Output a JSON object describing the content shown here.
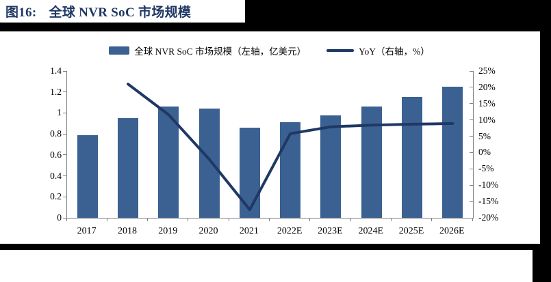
{
  "figure": {
    "label": "图16:",
    "title": "全球 NVR SoC 市场规模"
  },
  "legend": {
    "bar_label": "全球 NVR SoC 市场规模（左轴，亿美元）",
    "line_label": "YoY（右轴，%）"
  },
  "chart_data": {
    "type": "bar",
    "title": "全球 NVR SoC 市场规模",
    "categories": [
      "2017",
      "2018",
      "2019",
      "2020",
      "2021",
      "2022E",
      "2023E",
      "2024E",
      "2025E",
      "2026E"
    ],
    "series": [
      {
        "name": "全球 NVR SoC 市场规模（左轴，亿美元）",
        "type": "bar",
        "axis": "left",
        "values": [
          0.79,
          0.95,
          1.06,
          1.04,
          0.86,
          0.91,
          0.98,
          1.06,
          1.15,
          1.25
        ]
      },
      {
        "name": "YoY（右轴，%）",
        "type": "line",
        "axis": "right",
        "values": [
          null,
          21,
          11.6,
          -2,
          -17.5,
          5.8,
          7.9,
          8.4,
          8.7,
          8.9
        ]
      }
    ],
    "left_axis": {
      "label": "亿美元",
      "min": 0,
      "max": 1.4,
      "tick_labels": [
        "1.4",
        "1.2",
        "1",
        "0.8",
        "0.6",
        "0.4",
        "0.2",
        "0"
      ]
    },
    "right_axis": {
      "label": "%",
      "min": -20,
      "max": 25,
      "tick_labels": [
        "25%",
        "20%",
        "15%",
        "10%",
        "5%",
        "0%",
        "-5%",
        "-10%",
        "-15%",
        "-20%"
      ]
    },
    "grid": false,
    "legend_position": "top",
    "colors": {
      "bar": "#3A6191",
      "line": "#1F3864",
      "title": "#1F3864",
      "band": "#000000",
      "axis": "#808080"
    }
  }
}
